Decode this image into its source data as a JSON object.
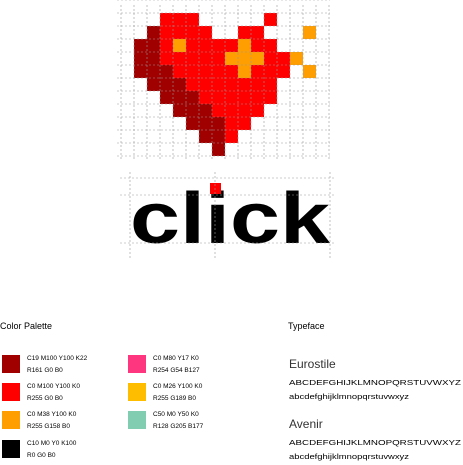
{
  "logo": {
    "wordmark": "click"
  },
  "palette": {
    "title": "Color Palette",
    "colors": [
      {
        "cmyk": "C19 M100 Y100 K22",
        "rgb": "R161 G0 B0",
        "color": "#a10000"
      },
      {
        "cmyk": "C0 M100 Y100 K0",
        "rgb": "R255 G0 B0",
        "color": "#ff0000"
      },
      {
        "cmyk": "C0 M38 Y100 K0",
        "rgb": "R255 G158 B0",
        "color": "#ff9e00"
      },
      {
        "cmyk": "C10 M0 Y0 K100",
        "rgb": "R0 G0 B0",
        "color": "#000000"
      },
      {
        "cmyk": "C0 M80 Y17 K0",
        "rgb": "R254 G54 B127",
        "color": "#fe367f"
      },
      {
        "cmyk": "C0 M26 Y100 K0",
        "rgb": "R255 G189 B0",
        "color": "#ffbd00"
      },
      {
        "cmyk": "C50 M0 Y50 K0",
        "rgb": "R128 G205 B177",
        "color": "#80cdb1"
      }
    ]
  },
  "typeface": {
    "title": "Typeface",
    "fonts": [
      {
        "name": "Eurostile",
        "upper": "ABCDEFGHIJKLMNOPQRSTUVWXYZ",
        "lower": "abcdefghijklmnopqrstuvwxyz"
      },
      {
        "name": "Avenir",
        "upper": "ABCDEFGHIJKLMNOPQRSTUVWXYZ",
        "lower": "abcdefghijklmnopqrstuvwxyz"
      }
    ]
  }
}
